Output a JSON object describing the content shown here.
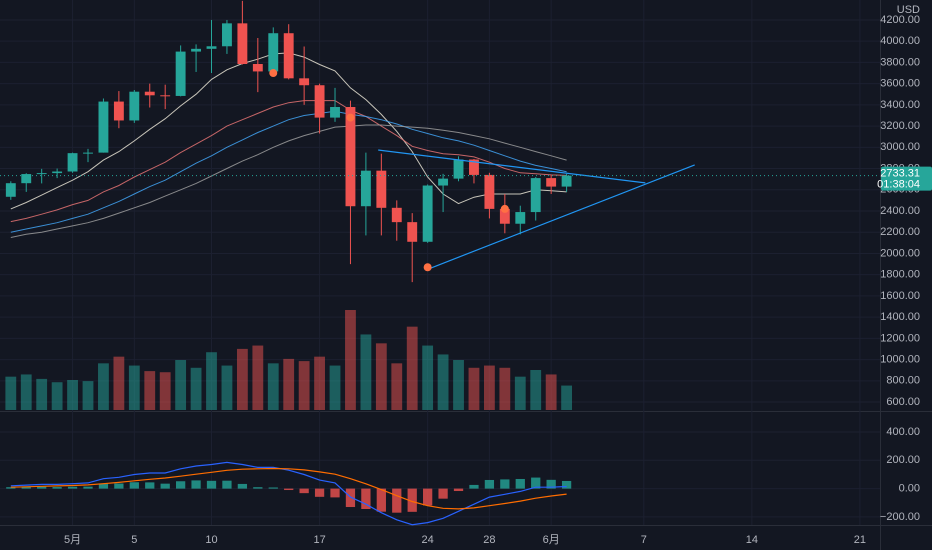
{
  "chart_data": {
    "type": "candlestick",
    "currency": "USD",
    "countdown": "01:38:04",
    "grid": true,
    "up_color": "#26a69a",
    "down_color": "#ef5350",
    "xlim": [
      -4.7,
      52.3
    ],
    "xticks": [
      {
        "value": 0,
        "label": "5月"
      },
      {
        "value": 4,
        "label": "5"
      },
      {
        "value": 9,
        "label": "10"
      },
      {
        "value": 16,
        "label": "17"
      },
      {
        "value": 23,
        "label": "24"
      },
      {
        "value": 27,
        "label": "28"
      },
      {
        "value": 31,
        "label": "6月"
      },
      {
        "value": 37,
        "label": "7"
      },
      {
        "value": 44,
        "label": "14"
      },
      {
        "value": 51,
        "label": "21"
      }
    ],
    "ylim": [
      525,
      4388
    ],
    "yticks": [
      {
        "value": 4200,
        "label": "4200.00"
      },
      {
        "value": 4000,
        "label": "4000.00"
      },
      {
        "value": 3800,
        "label": "3800.00"
      },
      {
        "value": 3600,
        "label": "3600.00"
      },
      {
        "value": 3400,
        "label": "3400.00"
      },
      {
        "value": 3200,
        "label": "3200.00"
      },
      {
        "value": 3000,
        "label": "3000.00"
      },
      {
        "value": 2800,
        "label": "2800.00"
      },
      {
        "value": 2600,
        "label": "2600.00"
      },
      {
        "value": 2400,
        "label": "2400.00"
      },
      {
        "value": 2200,
        "label": "2200.00"
      },
      {
        "value": 2000,
        "label": "2000.00"
      },
      {
        "value": 1800,
        "label": "1800.00"
      },
      {
        "value": 1600,
        "label": "1600.00"
      },
      {
        "value": 1400,
        "label": "1400.00"
      },
      {
        "value": 1200,
        "label": "1200.00"
      },
      {
        "value": 1000,
        "label": "1000.00"
      },
      {
        "value": 800,
        "label": "800.00"
      },
      {
        "value": 600,
        "label": "600.00"
      }
    ],
    "x": [
      -4,
      -3,
      -2,
      -1,
      0,
      1,
      2,
      3,
      4,
      5,
      6,
      7,
      8,
      9,
      10,
      11,
      12,
      13,
      14,
      15,
      16,
      17,
      18,
      19,
      20,
      21,
      22,
      23,
      24,
      25,
      26,
      27,
      28,
      29,
      30,
      31,
      32
    ],
    "open": [
      2534,
      2662,
      2748,
      2757,
      2772,
      2945,
      2950,
      3431,
      3253,
      3524,
      3490,
      3484,
      3902,
      3928,
      3952,
      4168,
      3785,
      3715,
      4075,
      3650,
      3585,
      3280,
      3380,
      2445,
      2780,
      2430,
      2295,
      2110,
      2640,
      2705,
      2885,
      2740,
      2420,
      2280,
      2390,
      2710,
      2630
    ],
    "high": [
      2680,
      2756,
      2797,
      2800,
      2950,
      2985,
      3460,
      3530,
      3540,
      3600,
      3590,
      3960,
      3970,
      4200,
      4200,
      4380,
      4030,
      4130,
      4160,
      3950,
      3600,
      3560,
      3440,
      2950,
      2940,
      2500,
      2380,
      2650,
      2750,
      2915,
      2890,
      2760,
      2560,
      2450,
      2720,
      2740,
      2750
    ],
    "low": [
      2505,
      2580,
      2660,
      2710,
      2760,
      2860,
      2950,
      3180,
      3230,
      3375,
      3360,
      3480,
      3710,
      3700,
      3880,
      3780,
      3520,
      3690,
      3640,
      3400,
      3130,
      3240,
      1900,
      2170,
      2170,
      2120,
      1730,
      2100,
      2390,
      2680,
      2660,
      2330,
      2190,
      2180,
      2310,
      2560,
      2580
    ],
    "close": [
      2662,
      2748,
      2757,
      2772,
      2945,
      2950,
      3431,
      3253,
      3524,
      3490,
      3484,
      3902,
      3928,
      3952,
      4168,
      3785,
      3715,
      4075,
      3650,
      3585,
      3280,
      3380,
      2445,
      2780,
      2430,
      2295,
      2110,
      2640,
      2705,
      2885,
      2740,
      2420,
      2280,
      2390,
      2710,
      2630,
      2733.31
    ],
    "volume": [
      30,
      32,
      28,
      25,
      27,
      26,
      42,
      48,
      40,
      35,
      34,
      45,
      38,
      52,
      40,
      55,
      58,
      42,
      46,
      44,
      48,
      40,
      90,
      68,
      60,
      42,
      75,
      58,
      50,
      45,
      38,
      40,
      38,
      30,
      36,
      32,
      22
    ],
    "moving_averages": [
      {
        "color": "#e8e3d3",
        "values": [
          2420,
          2480,
          2550,
          2620,
          2690,
          2770,
          2880,
          2960,
          3060,
          3170,
          3270,
          3390,
          3500,
          3640,
          3730,
          3790,
          3830,
          3880,
          3890,
          3850,
          3780,
          3720,
          3560,
          3450,
          3310,
          3150,
          2960,
          2720,
          2560,
          2470,
          2530,
          2560,
          2560,
          2560,
          2600,
          2590,
          2580
        ]
      },
      {
        "color": "#e57373",
        "values": [
          2300,
          2330,
          2370,
          2410,
          2460,
          2500,
          2580,
          2640,
          2720,
          2790,
          2860,
          2950,
          3030,
          3110,
          3200,
          3260,
          3320,
          3380,
          3420,
          3440,
          3440,
          3440,
          3350,
          3290,
          3200,
          3110,
          3010,
          2970,
          2940,
          2930,
          2910,
          2860,
          2800,
          2760,
          2750,
          2740,
          2735
        ]
      },
      {
        "color": "#42a5f5",
        "values": [
          2200,
          2230,
          2260,
          2290,
          2330,
          2370,
          2430,
          2490,
          2560,
          2630,
          2690,
          2770,
          2850,
          2920,
          3000,
          3070,
          3140,
          3200,
          3260,
          3300,
          3320,
          3340,
          3310,
          3290,
          3260,
          3220,
          3170,
          3130,
          3090,
          3060,
          3020,
          2970,
          2920,
          2870,
          2830,
          2800,
          2770
        ]
      },
      {
        "color": "#9e9e9e",
        "values": [
          2150,
          2180,
          2200,
          2230,
          2260,
          2290,
          2330,
          2380,
          2430,
          2480,
          2540,
          2600,
          2660,
          2730,
          2800,
          2870,
          2930,
          3000,
          3060,
          3110,
          3150,
          3190,
          3200,
          3210,
          3210,
          3200,
          3190,
          3180,
          3160,
          3140,
          3110,
          3080,
          3040,
          3000,
          2960,
          2920,
          2880
        ]
      }
    ],
    "markers": {
      "color": "#ff7043",
      "x": [
        13,
        18,
        23,
        28
      ],
      "y": [
        3700,
        3280,
        1870,
        2420
      ]
    },
    "trendlines": [
      {
        "color": "#2196f3",
        "x": [
          19.8,
          37.1
        ],
        "y": [
          2975,
          2665
        ]
      },
      {
        "color": "#2196f3",
        "x": [
          22.9,
          40.3
        ],
        "y": [
          1845,
          2834
        ]
      }
    ],
    "macd": {
      "ylim": [
        -257,
        534
      ],
      "yticks": [
        {
          "value": 400,
          "label": "400.00"
        },
        {
          "value": 200,
          "label": "200.00"
        },
        {
          "value": 0,
          "label": "0.00"
        },
        {
          "value": -200,
          "label": "−200.00"
        }
      ],
      "macd": {
        "color": "#2962ff",
        "values": [
          20,
          25,
          30,
          30,
          35,
          40,
          70,
          80,
          100,
          110,
          110,
          140,
          160,
          170,
          185,
          170,
          150,
          150,
          130,
          100,
          60,
          40,
          -60,
          -110,
          -170,
          -220,
          -255,
          -240,
          -210,
          -160,
          -110,
          -60,
          -40,
          -20,
          10,
          10,
          15
        ]
      },
      "signal": {
        "color": "#ff6d00",
        "values": [
          10,
          13,
          16,
          19,
          22,
          26,
          35,
          44,
          55,
          66,
          75,
          88,
          102,
          115,
          129,
          137,
          140,
          142,
          140,
          132,
          118,
          102,
          70,
          34,
          -7,
          -50,
          -91,
          -121,
          -139,
          -143,
          -136,
          -121,
          -105,
          -88,
          -68,
          -52,
          -39
        ]
      },
      "histogram": [
        10,
        12,
        14,
        11,
        13,
        14,
        35,
        36,
        45,
        44,
        35,
        52,
        58,
        55,
        56,
        33,
        10,
        8,
        -10,
        -32,
        -58,
        -62,
        -130,
        -144,
        -163,
        -170,
        -164,
        -119,
        -71,
        -17,
        26,
        61,
        65,
        68,
        78,
        62,
        54
      ]
    }
  }
}
